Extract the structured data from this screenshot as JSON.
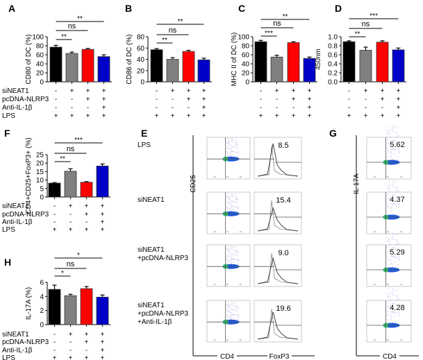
{
  "colors": {
    "black": "#000000",
    "gray": "#808080",
    "red": "#ff0000",
    "blue": "#0000c8"
  },
  "conditions": {
    "labels": [
      "siNEAT1",
      "pcDNA-NLRP3",
      "Anti-IL-1β",
      "LPS"
    ],
    "values": [
      [
        "-",
        "+",
        "+",
        "+"
      ],
      [
        "-",
        "-",
        "+",
        "+"
      ],
      [
        "-",
        "-",
        "-",
        "+"
      ],
      [
        "+",
        "+",
        "+",
        "+"
      ]
    ]
  },
  "chart_data": [
    {
      "panel": "A",
      "type": "bar",
      "ylabel": "CD80 of DC (%)",
      "ylim": [
        0,
        100
      ],
      "yticks": [
        "0",
        "20",
        "40",
        "60",
        "80",
        "100"
      ],
      "values": [
        77,
        63,
        72,
        56
      ],
      "errors": [
        4,
        3,
        2,
        4
      ],
      "comparisons": [
        {
          "pair": [
            1,
            2
          ],
          "label": "**"
        },
        {
          "pair": [
            1,
            3
          ],
          "label": "ns"
        },
        {
          "pair": [
            1,
            4
          ],
          "label": "**"
        }
      ],
      "show_condition_labels": true
    },
    {
      "panel": "B",
      "type": "bar",
      "ylabel": "CD86 of DC (%)",
      "ylim": [
        0,
        80
      ],
      "yticks": [
        "0",
        "20",
        "40",
        "60",
        "80"
      ],
      "values": [
        57,
        40,
        54,
        39
      ],
      "errors": [
        2,
        3,
        2,
        3
      ],
      "comparisons": [
        {
          "pair": [
            1,
            2
          ],
          "label": "**"
        },
        {
          "pair": [
            1,
            3
          ],
          "label": "ns"
        },
        {
          "pair": [
            1,
            4
          ],
          "label": "**"
        }
      ],
      "show_condition_labels": false
    },
    {
      "panel": "C",
      "type": "bar",
      "ylabel": "MHC II of DC (%)",
      "ylim": [
        0,
        100
      ],
      "yticks": [
        "0",
        "20",
        "40",
        "60",
        "80",
        "100"
      ],
      "values": [
        89,
        55,
        87,
        52
      ],
      "errors": [
        3,
        4,
        2,
        3
      ],
      "comparisons": [
        {
          "pair": [
            1,
            2
          ],
          "label": "***"
        },
        {
          "pair": [
            1,
            3
          ],
          "label": "ns"
        },
        {
          "pair": [
            1,
            4
          ],
          "label": "**"
        }
      ],
      "show_condition_labels": false
    },
    {
      "panel": "D",
      "type": "bar",
      "ylabel": "450nm",
      "ylim": [
        0,
        1
      ],
      "yticks": [
        "0.0",
        "0.2",
        "0.4",
        "0.6",
        "0.8",
        "1.0"
      ],
      "values": [
        0.89,
        0.7,
        0.88,
        0.71
      ],
      "errors": [
        0.02,
        0.07,
        0.03,
        0.04
      ],
      "comparisons": [
        {
          "pair": [
            1,
            2
          ],
          "label": "**"
        },
        {
          "pair": [
            1,
            3
          ],
          "label": "ns"
        },
        {
          "pair": [
            1,
            4
          ],
          "label": "***"
        }
      ],
      "show_condition_labels": false
    },
    {
      "panel": "F",
      "type": "bar",
      "ylabel": "CD4+CD25+FoxP3+ (%)",
      "ylim": [
        0,
        25
      ],
      "yticks": [
        "0",
        "5",
        "10",
        "15",
        "20",
        "25"
      ],
      "values": [
        8.2,
        15.2,
        8.7,
        18.3
      ],
      "errors": [
        0.3,
        1.5,
        0.4,
        1.2
      ],
      "comparisons": [
        {
          "pair": [
            1,
            2
          ],
          "label": "**"
        },
        {
          "pair": [
            1,
            3
          ],
          "label": "ns"
        },
        {
          "pair": [
            1,
            4
          ],
          "label": "***"
        }
      ],
      "show_condition_labels": true
    },
    {
      "panel": "H",
      "type": "bar",
      "ylabel": "IL-17A (%)",
      "ylim": [
        0,
        6
      ],
      "yticks": [
        "0",
        "2",
        "4",
        "6"
      ],
      "values": [
        5.0,
        4.1,
        5.1,
        3.9
      ],
      "errors": [
        0.6,
        0.2,
        0.3,
        0.3
      ],
      "comparisons": [
        {
          "pair": [
            1,
            2
          ],
          "label": "*"
        },
        {
          "pair": [
            1,
            3
          ],
          "label": "ns"
        },
        {
          "pair": [
            1,
            4
          ],
          "label": "*"
        }
      ],
      "show_condition_labels": true
    }
  ],
  "flow": {
    "E": {
      "panel": "E",
      "y_axis": "CD25",
      "x_axis_dot": "CD4",
      "x_axis_hist": "FoxP3",
      "rows": [
        {
          "label": "LPS",
          "value": "8.5"
        },
        {
          "label": "siNEAT1",
          "value": "15.4"
        },
        {
          "label": "siNEAT1\n+pcDNA-NLRP3",
          "value": "9.0"
        },
        {
          "label": "siNEAT1\n+pcDNA-NLRP3\n+Anti-IL-1β",
          "value": "19.6"
        }
      ]
    },
    "G": {
      "panel": "G",
      "y_axis": "IL-17A",
      "x_axis": "CD4",
      "values": [
        "5.62",
        "4.37",
        "5.29",
        "4.28"
      ]
    }
  }
}
